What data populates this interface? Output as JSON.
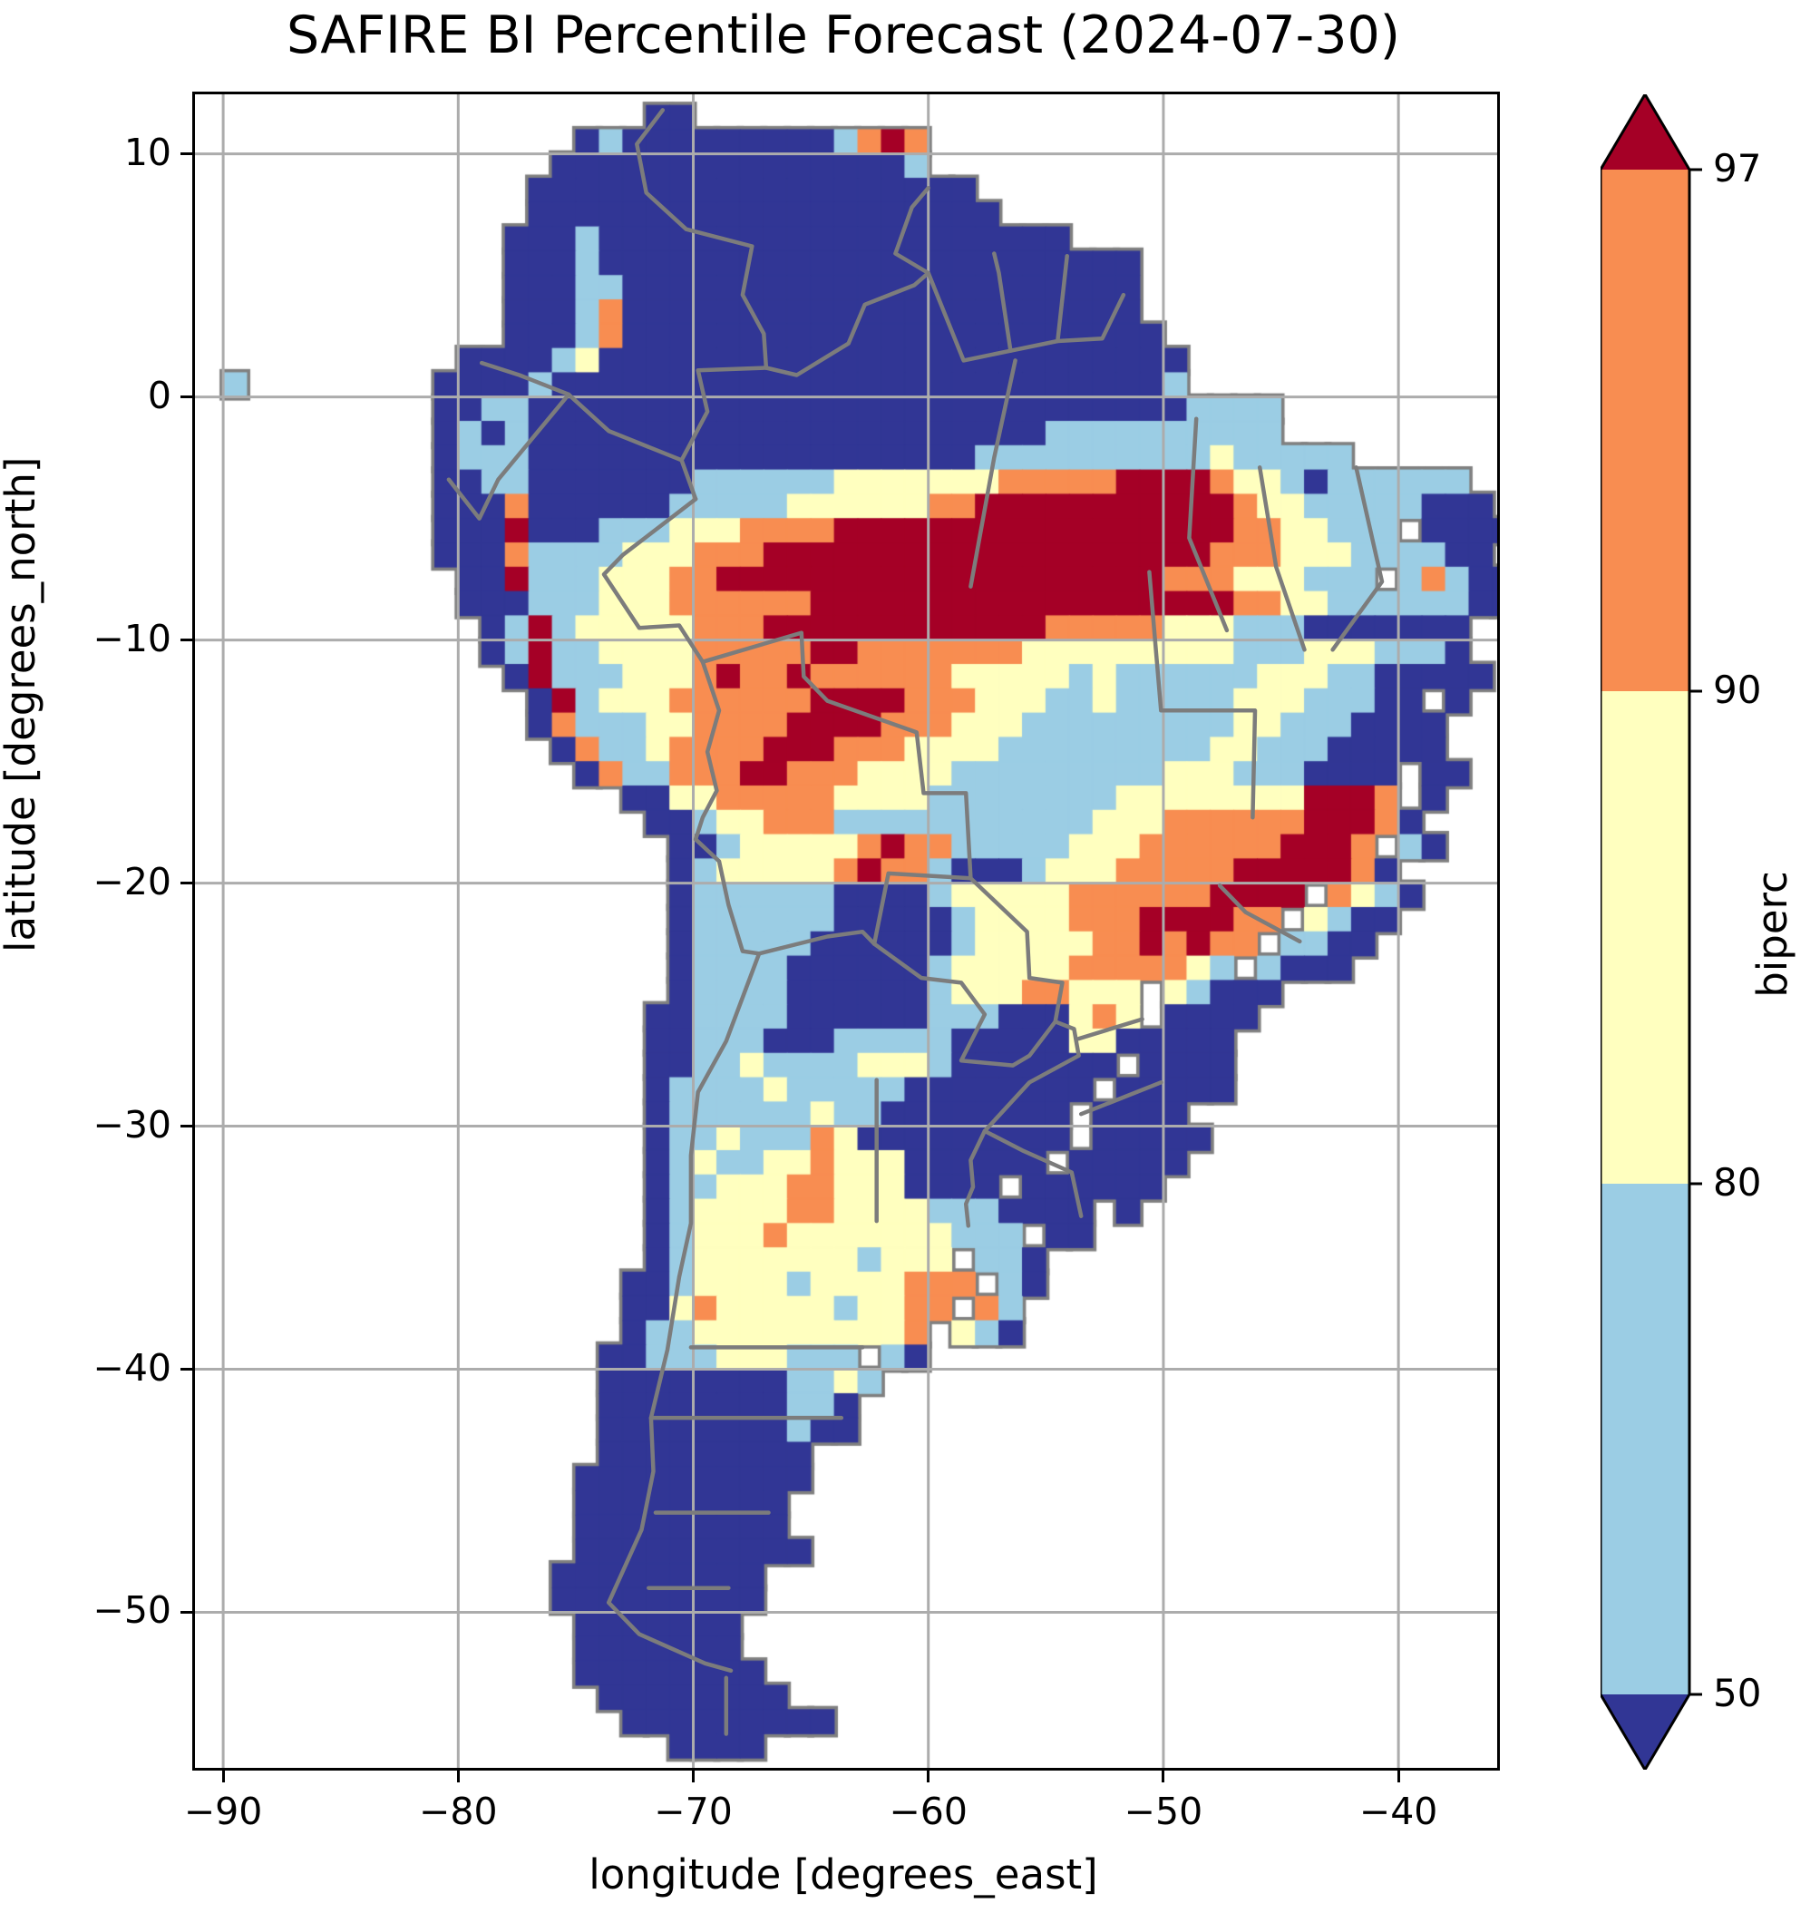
{
  "figure": {
    "title": "SAFIRE BI Percentile Forecast (2024-07-30)",
    "background_color": "#ffffff",
    "frame_color": "#000000"
  },
  "axes": {
    "xlabel": "longitude [degrees_east]",
    "ylabel": "latitude [degrees_north]",
    "lon_range": [
      -91.2,
      -35.8
    ],
    "lat_range": [
      -56.4,
      12.45
    ],
    "grid": true,
    "grid_color": "#acacac",
    "xticks": [
      {
        "v": -90,
        "label": "−90"
      },
      {
        "v": -80,
        "label": "−80"
      },
      {
        "v": -70,
        "label": "−70"
      },
      {
        "v": -60,
        "label": "−60"
      },
      {
        "v": -50,
        "label": "−50"
      },
      {
        "v": -40,
        "label": "−40"
      }
    ],
    "yticks": [
      {
        "v": 10,
        "label": "10"
      },
      {
        "v": 0,
        "label": "0"
      },
      {
        "v": -10,
        "label": "−10"
      },
      {
        "v": -20,
        "label": "−20"
      },
      {
        "v": -30,
        "label": "−30"
      },
      {
        "v": -40,
        "label": "−40"
      },
      {
        "v": -50,
        "label": "−50"
      }
    ]
  },
  "colorbar": {
    "label": "biperc",
    "boundaries": [
      50,
      80,
      90,
      97
    ],
    "ticks": [
      {
        "level": 97,
        "label": "97"
      },
      {
        "level": 90,
        "label": "90"
      },
      {
        "level": 80,
        "label": "80"
      },
      {
        "level": 50,
        "label": "50"
      }
    ],
    "segment_colors_top_to_bottom": [
      "#f88d51",
      "#ffffbf",
      "#9bcde4"
    ],
    "over_color": "#a50026",
    "under_color": "#313695",
    "outline_color": "#000000"
  },
  "chart_data": {
    "type": "heatmap",
    "title": "SAFIRE BI Percentile Forecast (2024-07-30)",
    "xlabel": "longitude [degrees_east]",
    "ylabel": "latitude [degrees_north]",
    "variable": "biperc",
    "levels": [
      50,
      80,
      90,
      97
    ],
    "class_colors": {
      "1": "#313695",
      "2": "#9bcde4",
      "3": "#ffffbf",
      "4": "#f88d51",
      "5": "#a50026"
    },
    "class_meaning": {
      ".": "ocean / no data",
      "1": "below 50th percentile",
      "2": "50-80",
      "3": "80-90",
      "4": "90-97",
      "5": "above 97th percentile"
    },
    "coast_outline_color": "#808080",
    "admin_border_color": "#7c7c7c",
    "grid": {
      "lon_west": -91,
      "lat_north": 12,
      "cell_deg": 1,
      "rows": [
        "...................11..................................",
        "................121111111112454........................",
        "...............1111111111111112........................",
        "..............1111111111111111111......................",
        "..............11111111111111111111.....................",
        ".............111211111111111111111111..................",
        ".............111211111111111111111111111...............",
        ".............111221111111111111111111111...............",
        ".............111241111111111111111111111...............",
        ".............1112411111111111111111111111..............",
        "...........1111231111111111111111111111111.............",
        ".2........11112111111111111111111111111112.............",
        "..........112211111111111111111111111111112222...........",
        "..........121211111111111111111111112222222222..........",
        "..........122211111111111111111112222222222322222 .....",
        "..........11221111111222222333333344444555543321222222..",
        "..........111411111122222333333445555555555543322222111.",
        "..........11151112223334444555555555555555554433222 1111",
        "..........111422223334445555555555555555555444333222211",
        "...........115222333445555555555555555555444333222 24211",
        "...........1112223334444445555555555555555554433222222111.",
        "............125233333444555555555555444443332221111111.",
        "............125223333444445544444443333333332223332221.",
        ".............152223334544544444433333232222223332211111.",
        "..............15233344444455554443332232222233322211 1..",
        "..............142223344445555444333222222222332221111..",
        "...............14223444455544433332222222223322211111..",
        "................14224445544433332222222223332221111 11..",
        "..................113344444333322222222333333335554 1...",
        "...................112334442222222222233344444455541...",
        "....................112333334544222223334444445554 21...",
        "....................1233333454421112333444445555541....",
        "....................122222211112333334444445555 4321....",
        "....................12222221111123333444555544 3211.....",
        "....................1222221111112333334454544 2211......",
        "....................122221111112333334444432 2111.......",
        "....................12222111111233344333 32111..........",
        "...................112222111111222111343 1111...........",
        "...................1122211122222111113311111...........",
        "...................11223222233321111111 1111............",
        "...................1222232222211111111 11111............",
        "...................122222232211111111 1111..............",
        "...................122322243111111111 11111.............",
        "...................12322334333111111 11111...............",
        "...................122333443331111 111111................",
        "...................1233334433332221111 1..................",
        "...................1233343333333222 11..................",
        "...................1233333332333 221....................",
        "..................112333323333444 21....................",
        "..................11343333323344 42.....................",
        "..................1223333333334 321.....................",
        ".................11222333222 21.........................",
        ".................111111112232..........................",
        ".................11111111221...........................",
        ".................11111111211...........................",
        ".................111111111.............................",
        "................1111111111.............................",
        "................111111111..............................",
        "................111111111..............................",
        "................1111111111.............................",
        "...............111111111...............................",
        "...............111111111...............................",
        "................1111111................................",
        "................1111111................................",
        "................11111111...............................",
        ".................11111111..............................",
        "..................111111111............................",
        "....................1111..............................."
      ]
    },
    "borders": [
      {
        "name": "colombia-venezuela",
        "pts": [
          [
            -71.3,
            11.8
          ],
          [
            -72.4,
            10.4
          ],
          [
            -72.0,
            8.4
          ],
          [
            -70.3,
            6.9
          ],
          [
            -67.5,
            6.2
          ],
          [
            -67.9,
            4.2
          ],
          [
            -67.0,
            2.6
          ],
          [
            -66.9,
            1.2
          ]
        ]
      },
      {
        "name": "colombia-ecuador",
        "pts": [
          [
            -79.0,
            1.4
          ],
          [
            -77.4,
            0.9
          ],
          [
            -75.3,
            0.1
          ]
        ]
      },
      {
        "name": "colombia-peru",
        "pts": [
          [
            -75.3,
            0.1
          ],
          [
            -73.6,
            -1.4
          ],
          [
            -70.5,
            -2.6
          ],
          [
            -69.9,
            -4.2
          ]
        ]
      },
      {
        "name": "colombia-brazil",
        "pts": [
          [
            -66.9,
            1.2
          ],
          [
            -69.8,
            1.1
          ],
          [
            -69.4,
            -0.6
          ],
          [
            -70.5,
            -2.6
          ]
        ]
      },
      {
        "name": "venezuela-brazil-guyana",
        "pts": [
          [
            -66.9,
            1.2
          ],
          [
            -65.6,
            0.9
          ],
          [
            -63.4,
            2.2
          ],
          [
            -62.7,
            3.8
          ],
          [
            -60.6,
            4.6
          ],
          [
            -60.0,
            5.1
          ],
          [
            -61.4,
            5.9
          ],
          [
            -60.7,
            7.8
          ],
          [
            -60.0,
            8.6
          ]
        ]
      },
      {
        "name": "guyana-brazil",
        "pts": [
          [
            -60.0,
            5.1
          ],
          [
            -58.5,
            1.5
          ],
          [
            -56.5,
            1.9
          ],
          [
            -57.0,
            5.1
          ],
          [
            -57.2,
            5.9
          ]
        ]
      },
      {
        "name": "suriname-french-guiana",
        "pts": [
          [
            -54.1,
            5.8
          ],
          [
            -54.5,
            2.3
          ],
          [
            -56.5,
            1.9
          ]
        ]
      },
      {
        "name": "french-guiana-brazil",
        "pts": [
          [
            -51.7,
            4.2
          ],
          [
            -52.6,
            2.4
          ],
          [
            -54.5,
            2.3
          ]
        ]
      },
      {
        "name": "ecuador-peru",
        "pts": [
          [
            -80.4,
            -3.4
          ],
          [
            -79.1,
            -5.0
          ],
          [
            -78.3,
            -3.4
          ],
          [
            -75.3,
            0.1
          ]
        ]
      },
      {
        "name": "peru-brazil",
        "pts": [
          [
            -69.9,
            -4.2
          ],
          [
            -73.0,
            -6.5
          ],
          [
            -73.8,
            -7.3
          ],
          [
            -72.3,
            -9.5
          ],
          [
            -70.6,
            -9.4
          ],
          [
            -69.6,
            -10.9
          ]
        ]
      },
      {
        "name": "peru-bolivia",
        "pts": [
          [
            -69.6,
            -10.9
          ],
          [
            -68.9,
            -12.9
          ],
          [
            -69.4,
            -14.6
          ],
          [
            -69.0,
            -16.2
          ],
          [
            -69.6,
            -17.3
          ],
          [
            -69.9,
            -18.2
          ]
        ]
      },
      {
        "name": "bolivia-brazil",
        "pts": [
          [
            -69.6,
            -10.9
          ],
          [
            -65.4,
            -9.7
          ],
          [
            -65.3,
            -11.5
          ],
          [
            -64.3,
            -12.5
          ],
          [
            -60.5,
            -13.8
          ],
          [
            -60.2,
            -16.3
          ],
          [
            -58.4,
            -16.3
          ],
          [
            -58.2,
            -19.8
          ]
        ]
      },
      {
        "name": "chile-bolivia-argentina",
        "pts": [
          [
            -69.9,
            -18.2
          ],
          [
            -68.9,
            -19.1
          ],
          [
            -68.5,
            -20.9
          ],
          [
            -67.9,
            -22.8
          ],
          [
            -67.2,
            -22.9
          ],
          [
            -64.3,
            -22.2
          ],
          [
            -62.8,
            -22.0
          ],
          [
            -62.3,
            -22.5
          ]
        ]
      },
      {
        "name": "bolivia-paraguay",
        "pts": [
          [
            -62.3,
            -22.5
          ],
          [
            -61.7,
            -19.6
          ],
          [
            -58.2,
            -19.8
          ]
        ]
      },
      {
        "name": "paraguay-brazil",
        "pts": [
          [
            -58.2,
            -19.8
          ],
          [
            -55.8,
            -22.0
          ],
          [
            -55.7,
            -23.9
          ],
          [
            -54.3,
            -24.1
          ],
          [
            -54.6,
            -25.7
          ]
        ]
      },
      {
        "name": "paraguay-argentina",
        "pts": [
          [
            -62.3,
            -22.5
          ],
          [
            -60.3,
            -23.9
          ],
          [
            -58.6,
            -24.1
          ],
          [
            -57.6,
            -25.4
          ],
          [
            -58.6,
            -27.3
          ],
          [
            -56.4,
            -27.5
          ],
          [
            -55.7,
            -27.1
          ],
          [
            -54.6,
            -25.7
          ]
        ]
      },
      {
        "name": "argentina-brazil",
        "pts": [
          [
            -54.6,
            -25.7
          ],
          [
            -53.8,
            -26.0
          ],
          [
            -53.6,
            -27.1
          ],
          [
            -55.7,
            -28.2
          ],
          [
            -57.6,
            -30.2
          ]
        ]
      },
      {
        "name": "argentina-uruguay",
        "pts": [
          [
            -57.6,
            -30.2
          ],
          [
            -58.2,
            -31.4
          ],
          [
            -58.1,
            -32.5
          ],
          [
            -58.4,
            -33.2
          ],
          [
            -58.3,
            -34.1
          ]
        ]
      },
      {
        "name": "uruguay-brazil",
        "pts": [
          [
            -57.6,
            -30.2
          ],
          [
            -56.0,
            -31.0
          ],
          [
            -53.9,
            -31.9
          ],
          [
            -53.5,
            -33.7
          ]
        ]
      },
      {
        "name": "argentina-chile",
        "pts": [
          [
            -67.2,
            -22.9
          ],
          [
            -68.6,
            -26.5
          ],
          [
            -69.8,
            -28.6
          ],
          [
            -70.1,
            -31.2
          ],
          [
            -70.1,
            -34.0
          ],
          [
            -70.6,
            -36.2
          ],
          [
            -71.1,
            -39.2
          ],
          [
            -71.8,
            -42.0
          ],
          [
            -71.7,
            -44.2
          ],
          [
            -72.2,
            -46.6
          ],
          [
            -73.6,
            -49.6
          ],
          [
            -72.3,
            -50.9
          ],
          [
            -69.5,
            -52.1
          ],
          [
            -68.4,
            -52.4
          ]
        ]
      },
      {
        "name": "argentina-chile-tierra-del-fuego",
        "pts": [
          [
            -68.6,
            -52.7
          ],
          [
            -68.6,
            -55.0
          ]
        ]
      },
      {
        "name": "state-amazonas-para",
        "pts": [
          [
            -56.3,
            1.5
          ],
          [
            -57.2,
            -2.5
          ],
          [
            -58.2,
            -7.8
          ]
        ]
      },
      {
        "name": "state-para-tocantins",
        "pts": [
          [
            -48.6,
            -0.9
          ],
          [
            -48.9,
            -5.8
          ],
          [
            -47.3,
            -9.6
          ]
        ]
      },
      {
        "name": "state-maranhao-piaui",
        "pts": [
          [
            -45.9,
            -2.9
          ],
          [
            -45.2,
            -7.0
          ],
          [
            -44.0,
            -10.4
          ]
        ]
      },
      {
        "name": "state-piaui-ceara",
        "pts": [
          [
            -41.8,
            -2.9
          ],
          [
            -40.7,
            -7.6
          ],
          [
            -42.8,
            -10.4
          ]
        ]
      },
      {
        "name": "state-tocantins-goias-bahia",
        "pts": [
          [
            -50.6,
            -7.2
          ],
          [
            -50.1,
            -12.9
          ],
          [
            -46.1,
            -12.9
          ],
          [
            -46.2,
            -17.3
          ]
        ]
      },
      {
        "name": "state-minas-saopaulo",
        "pts": [
          [
            -47.6,
            -20.1
          ],
          [
            -46.5,
            -21.2
          ],
          [
            -44.2,
            -22.4
          ]
        ]
      },
      {
        "name": "state-parana-santacatarina",
        "pts": [
          [
            -50.9,
            -25.6
          ],
          [
            -53.6,
            -26.4
          ]
        ]
      },
      {
        "name": "state-santacatarina-riograndedosul",
        "pts": [
          [
            -50.1,
            -28.2
          ],
          [
            -53.5,
            -29.5
          ]
        ]
      },
      {
        "name": "province-santiago-cordoba",
        "pts": [
          [
            -62.2,
            -28.1
          ],
          [
            -62.2,
            -33.9
          ]
        ]
      },
      {
        "name": "province-rio-negro-north",
        "pts": [
          [
            -62.8,
            -39.1
          ],
          [
            -70.1,
            -39.1
          ]
        ]
      },
      {
        "name": "province-chubut-north",
        "pts": [
          [
            -71.8,
            -42.0
          ],
          [
            -63.7,
            -42.0
          ]
        ]
      },
      {
        "name": "province-chubut-santacruz",
        "pts": [
          [
            -71.6,
            -45.9
          ],
          [
            -66.8,
            -45.9
          ]
        ]
      },
      {
        "name": "province-santacruz-mid",
        "pts": [
          [
            -71.9,
            -49.0
          ],
          [
            -68.5,
            -49.0
          ]
        ]
      }
    ]
  }
}
